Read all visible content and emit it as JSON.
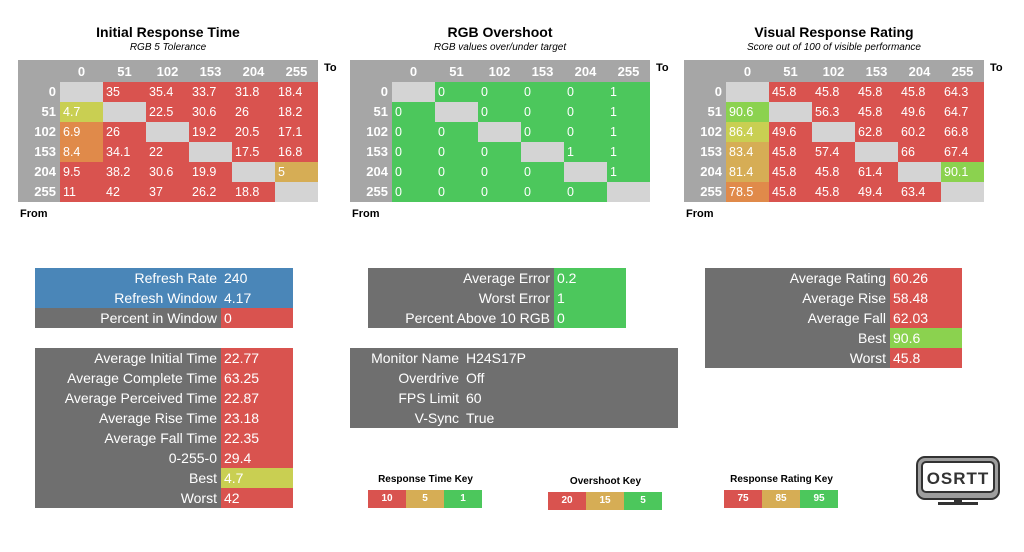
{
  "colors": {
    "red": "#d9534f",
    "green": "#4cc75c",
    "yellow_green": "#c9cf52",
    "amber": "#d6ad55",
    "orange": "#e08a4a",
    "light_green": "#8bd24f",
    "blue": "#4a86b8",
    "gray": "#6f6f6f",
    "header_gray": "#a6a6a6",
    "diag": "#d4d4d4"
  },
  "icons": [
    "monitor-logo-icon"
  ],
  "chart_data": [
    {
      "type": "heatmap",
      "title": "Initial Response Time",
      "subtitle": "RGB 5 Tolerance",
      "x_axis_label": "To",
      "y_axis_label": "From",
      "columns": [
        "0",
        "51",
        "102",
        "153",
        "204",
        "255"
      ],
      "rows": [
        "0",
        "51",
        "102",
        "153",
        "204",
        "255"
      ],
      "values": [
        [
          null,
          "35",
          "35.4",
          "33.7",
          "31.8",
          "18.4"
        ],
        [
          "4.7",
          null,
          "22.5",
          "30.6",
          "26",
          "18.2"
        ],
        [
          "6.9",
          "26",
          null,
          "19.2",
          "20.5",
          "17.1"
        ],
        [
          "8.4",
          "34.1",
          "22",
          null,
          "17.5",
          "16.8"
        ],
        [
          "9.5",
          "38.2",
          "30.6",
          "19.9",
          null,
          "5"
        ],
        [
          "11",
          "42",
          "37",
          "26.2",
          "18.8",
          null
        ]
      ],
      "cell_colors": [
        [
          "diag",
          "red",
          "red",
          "red",
          "red",
          "red"
        ],
        [
          "yellow_green",
          "diag",
          "red",
          "red",
          "red",
          "red"
        ],
        [
          "orange",
          "red",
          "diag",
          "red",
          "red",
          "red"
        ],
        [
          "orange",
          "red",
          "red",
          "diag",
          "red",
          "red"
        ],
        [
          "red",
          "red",
          "red",
          "red",
          "diag",
          "amber"
        ],
        [
          "red",
          "red",
          "red",
          "red",
          "red",
          "diag"
        ]
      ]
    },
    {
      "type": "heatmap",
      "title": "RGB Overshoot",
      "subtitle": "RGB values over/under target",
      "x_axis_label": "To",
      "y_axis_label": "From",
      "columns": [
        "0",
        "51",
        "102",
        "153",
        "204",
        "255"
      ],
      "rows": [
        "0",
        "51",
        "102",
        "153",
        "204",
        "255"
      ],
      "values": [
        [
          null,
          "0",
          "0",
          "0",
          "0",
          "1"
        ],
        [
          "0",
          null,
          "0",
          "0",
          "0",
          "1"
        ],
        [
          "0",
          "0",
          null,
          "0",
          "0",
          "1"
        ],
        [
          "0",
          "0",
          "0",
          null,
          "1",
          "1"
        ],
        [
          "0",
          "0",
          "0",
          "0",
          null,
          "1"
        ],
        [
          "0",
          "0",
          "0",
          "0",
          "0",
          null
        ]
      ],
      "cell_colors": [
        [
          "diag",
          "green",
          "green",
          "green",
          "green",
          "green"
        ],
        [
          "green",
          "diag",
          "green",
          "green",
          "green",
          "green"
        ],
        [
          "green",
          "green",
          "diag",
          "green",
          "green",
          "green"
        ],
        [
          "green",
          "green",
          "green",
          "diag",
          "green",
          "green"
        ],
        [
          "green",
          "green",
          "green",
          "green",
          "diag",
          "green"
        ],
        [
          "green",
          "green",
          "green",
          "green",
          "green",
          "diag"
        ]
      ]
    },
    {
      "type": "heatmap",
      "title": "Visual Response Rating",
      "subtitle": "Score out of 100 of visible performance",
      "x_axis_label": "To",
      "y_axis_label": "From",
      "columns": [
        "0",
        "51",
        "102",
        "153",
        "204",
        "255"
      ],
      "rows": [
        "0",
        "51",
        "102",
        "153",
        "204",
        "255"
      ],
      "values": [
        [
          null,
          "45.8",
          "45.8",
          "45.8",
          "45.8",
          "64.3"
        ],
        [
          "90.6",
          null,
          "56.3",
          "45.8",
          "49.6",
          "64.7"
        ],
        [
          "86.4",
          "49.6",
          null,
          "62.8",
          "60.2",
          "66.8"
        ],
        [
          "83.4",
          "45.8",
          "57.4",
          null,
          "66",
          "67.4"
        ],
        [
          "81.4",
          "45.8",
          "45.8",
          "61.4",
          null,
          "90.1"
        ],
        [
          "78.5",
          "45.8",
          "45.8",
          "49.4",
          "63.4",
          null
        ]
      ],
      "cell_colors": [
        [
          "diag",
          "red",
          "red",
          "red",
          "red",
          "red"
        ],
        [
          "light_green",
          "diag",
          "red",
          "red",
          "red",
          "red"
        ],
        [
          "yellow_green",
          "red",
          "diag",
          "red",
          "red",
          "red"
        ],
        [
          "amber",
          "red",
          "red",
          "diag",
          "red",
          "red"
        ],
        [
          "amber",
          "red",
          "red",
          "red",
          "diag",
          "light_green"
        ],
        [
          "orange",
          "red",
          "red",
          "red",
          "red",
          "diag"
        ]
      ]
    }
  ],
  "panels": {
    "refresh": [
      {
        "label": "Refresh Rate",
        "value": "240",
        "label_color": "blue",
        "value_color": "blue"
      },
      {
        "label": "Refresh Window",
        "value": "4.17",
        "label_color": "blue",
        "value_color": "blue"
      },
      {
        "label": "Percent in Window",
        "value": "0",
        "label_color": "gray",
        "value_color": "red"
      }
    ],
    "response_stats": [
      {
        "label": "Average Initial Time",
        "value": "22.77",
        "value_color": "red"
      },
      {
        "label": "Average Complete Time",
        "value": "63.25",
        "value_color": "red"
      },
      {
        "label": "Average Perceived Time",
        "value": "22.87",
        "value_color": "red"
      },
      {
        "label": "Average Rise Time",
        "value": "23.18",
        "value_color": "red"
      },
      {
        "label": "Average Fall Time",
        "value": "22.35",
        "value_color": "red"
      },
      {
        "label": "0-255-0",
        "value": "29.4",
        "value_color": "red"
      },
      {
        "label": "Best",
        "value": "4.7",
        "value_color": "yellow_green"
      },
      {
        "label": "Worst",
        "value": "42",
        "value_color": "red"
      }
    ],
    "overshoot_stats": [
      {
        "label": "Average Error",
        "value": "0.2",
        "value_color": "green"
      },
      {
        "label": "Worst Error",
        "value": "1",
        "value_color": "green"
      },
      {
        "label": "Percent Above 10 RGB",
        "value": "0",
        "value_color": "green"
      }
    ],
    "monitor_info": [
      {
        "label": "Monitor Name",
        "value": "H24S17P"
      },
      {
        "label": "Overdrive",
        "value": "Off"
      },
      {
        "label": "FPS Limit",
        "value": "60"
      },
      {
        "label": "V-Sync",
        "value": "True"
      }
    ],
    "rating_stats": [
      {
        "label": "Average Rating",
        "value": "60.26",
        "value_color": "red"
      },
      {
        "label": "Average Rise",
        "value": "58.48",
        "value_color": "red"
      },
      {
        "label": "Average Fall",
        "value": "62.03",
        "value_color": "red"
      },
      {
        "label": "Best",
        "value": "90.6",
        "value_color": "light_green"
      },
      {
        "label": "Worst",
        "value": "45.8",
        "value_color": "red"
      }
    ]
  },
  "keys": [
    {
      "title": "Response Time Key",
      "items": [
        {
          "label": "10",
          "color": "red"
        },
        {
          "label": "5",
          "color": "amber"
        },
        {
          "label": "1",
          "color": "green"
        }
      ]
    },
    {
      "title": "Overshoot Key",
      "items": [
        {
          "label": "20",
          "color": "red"
        },
        {
          "label": "15",
          "color": "amber"
        },
        {
          "label": "5",
          "color": "green"
        }
      ]
    },
    {
      "title": "Response Rating Key",
      "items": [
        {
          "label": "75",
          "color": "red"
        },
        {
          "label": "85",
          "color": "amber"
        },
        {
          "label": "95",
          "color": "green"
        }
      ]
    }
  ],
  "logo": {
    "text": "OSRTT"
  }
}
